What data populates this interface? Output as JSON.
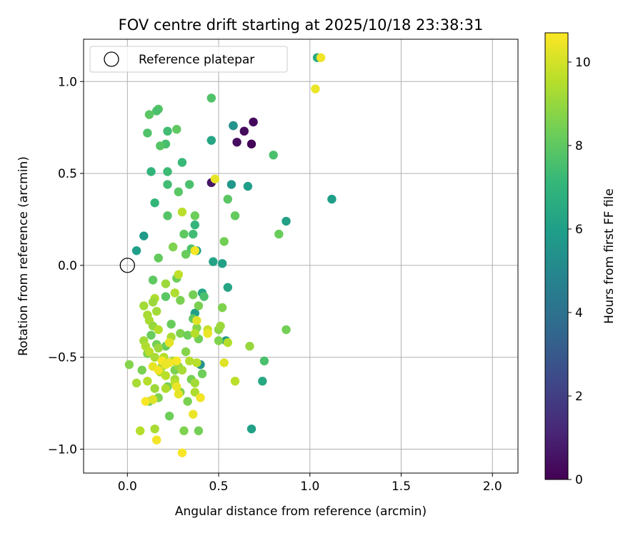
{
  "chart_data": {
    "type": "scatter",
    "title": "FOV centre drift starting at 2025/10/18 23:38:31",
    "xlabel": "Angular distance from reference (arcmin)",
    "ylabel": "Rotation from reference (arcmin)",
    "xlim": [
      -0.24,
      2.14
    ],
    "ylim": [
      -1.13,
      1.23
    ],
    "xticks": [
      0.0,
      0.5,
      1.0,
      1.5,
      2.0
    ],
    "xtick_labels": [
      "0.0",
      "0.5",
      "1.0",
      "1.5",
      "2.0"
    ],
    "yticks": [
      -1.0,
      -0.5,
      0.0,
      0.5,
      1.0
    ],
    "ytick_labels": [
      "−1.0",
      "−0.5",
      "0.0",
      "0.5",
      "1.0"
    ],
    "grid": true,
    "legend": {
      "label": "Reference platepar",
      "location": "top-left"
    },
    "reference_point": {
      "x": 0.0,
      "y": 0.0
    },
    "colorbar": {
      "label": "Hours from first FF file",
      "range": [
        0,
        10.7
      ],
      "ticks": [
        0,
        2,
        4,
        6,
        8,
        10
      ],
      "tick_labels": [
        "0",
        "2",
        "4",
        "6",
        "8",
        "10"
      ],
      "colormap": [
        "#440154",
        "#482878",
        "#3e4989",
        "#31688e",
        "#26828e",
        "#1f9e89",
        "#35b779",
        "#6ece58",
        "#b5de2b",
        "#fde725"
      ]
    },
    "points": [
      {
        "x": 0.58,
        "y": 0.76,
        "h": 0.5
      },
      {
        "x": 0.64,
        "y": 0.73,
        "h": 0.3
      },
      {
        "x": 0.69,
        "y": 0.78,
        "h": 0.2
      },
      {
        "x": 0.6,
        "y": 0.67,
        "h": 0.4
      },
      {
        "x": 0.68,
        "y": 0.66,
        "h": 0.1
      },
      {
        "x": 0.46,
        "y": 0.45,
        "h": 0.6
      },
      {
        "x": 0.58,
        "y": 0.76,
        "h": 5.5
      },
      {
        "x": 0.57,
        "y": 0.44,
        "h": 5.6
      },
      {
        "x": 0.66,
        "y": 0.43,
        "h": 6.0
      },
      {
        "x": 1.12,
        "y": 0.36,
        "h": 6.0
      },
      {
        "x": 0.87,
        "y": 0.24,
        "h": 6.1
      },
      {
        "x": 0.46,
        "y": 0.68,
        "h": 6.3
      },
      {
        "x": 0.09,
        "y": 0.16,
        "h": 5.8
      },
      {
        "x": 0.05,
        "y": 0.08,
        "h": 6.0
      },
      {
        "x": 0.47,
        "y": 0.02,
        "h": 6.2
      },
      {
        "x": 0.52,
        "y": 0.01,
        "h": 6.1
      },
      {
        "x": 0.55,
        "y": -0.12,
        "h": 6.3
      },
      {
        "x": 0.41,
        "y": -0.15,
        "h": 6.4
      },
      {
        "x": 0.37,
        "y": -0.26,
        "h": 6.0
      },
      {
        "x": 0.38,
        "y": 0.08,
        "h": 5.9
      },
      {
        "x": 0.54,
        "y": -0.41,
        "h": 5.7
      },
      {
        "x": 0.4,
        "y": -0.54,
        "h": 5.5
      },
      {
        "x": 0.68,
        "y": -0.89,
        "h": 6.1
      },
      {
        "x": 0.74,
        "y": -0.63,
        "h": 6.4
      },
      {
        "x": 1.04,
        "y": 1.13,
        "h": 6.5
      },
      {
        "x": 0.46,
        "y": 0.91,
        "h": 7.7
      },
      {
        "x": 0.17,
        "y": 0.85,
        "h": 7.8
      },
      {
        "x": 0.16,
        "y": 0.84,
        "h": 7.6
      },
      {
        "x": 0.12,
        "y": 0.82,
        "h": 7.9
      },
      {
        "x": 0.27,
        "y": 0.74,
        "h": 8.0
      },
      {
        "x": 0.22,
        "y": 0.73,
        "h": 7.4
      },
      {
        "x": 0.11,
        "y": 0.72,
        "h": 7.7
      },
      {
        "x": 0.21,
        "y": 0.66,
        "h": 7.5
      },
      {
        "x": 0.18,
        "y": 0.65,
        "h": 7.8
      },
      {
        "x": 0.8,
        "y": 0.6,
        "h": 7.6
      },
      {
        "x": 0.3,
        "y": 0.56,
        "h": 7.2
      },
      {
        "x": 0.22,
        "y": 0.51,
        "h": 7.3
      },
      {
        "x": 0.13,
        "y": 0.51,
        "h": 7.0
      },
      {
        "x": 0.22,
        "y": 0.44,
        "h": 7.4
      },
      {
        "x": 0.34,
        "y": 0.44,
        "h": 7.6
      },
      {
        "x": 0.28,
        "y": 0.4,
        "h": 7.9
      },
      {
        "x": 0.55,
        "y": 0.36,
        "h": 7.9
      },
      {
        "x": 0.15,
        "y": 0.34,
        "h": 7.1
      },
      {
        "x": 0.59,
        "y": 0.27,
        "h": 8.1
      },
      {
        "x": 0.37,
        "y": 0.27,
        "h": 8.3
      },
      {
        "x": 0.22,
        "y": 0.27,
        "h": 7.8
      },
      {
        "x": 0.37,
        "y": 0.22,
        "h": 7.0
      },
      {
        "x": 0.83,
        "y": 0.17,
        "h": 8.2
      },
      {
        "x": 0.31,
        "y": 0.17,
        "h": 8.0
      },
      {
        "x": 0.36,
        "y": 0.17,
        "h": 7.4
      },
      {
        "x": 0.53,
        "y": 0.13,
        "h": 8.4
      },
      {
        "x": 0.25,
        "y": 0.1,
        "h": 8.6
      },
      {
        "x": 0.35,
        "y": 0.09,
        "h": 7.7
      },
      {
        "x": 0.32,
        "y": 0.06,
        "h": 8.2
      },
      {
        "x": 0.17,
        "y": 0.04,
        "h": 8.1
      },
      {
        "x": 0.14,
        "y": -0.08,
        "h": 8.0
      },
      {
        "x": 0.27,
        "y": -0.07,
        "h": 8.3
      },
      {
        "x": 0.21,
        "y": -0.17,
        "h": 7.9
      },
      {
        "x": 0.36,
        "y": -0.16,
        "h": 8.4
      },
      {
        "x": 0.42,
        "y": -0.17,
        "h": 7.6
      },
      {
        "x": 0.29,
        "y": -0.19,
        "h": 8.5
      },
      {
        "x": 0.52,
        "y": -0.23,
        "h": 8.6
      },
      {
        "x": 0.39,
        "y": -0.22,
        "h": 8.5
      },
      {
        "x": 0.24,
        "y": -0.32,
        "h": 8.2
      },
      {
        "x": 0.36,
        "y": -0.29,
        "h": 8.0
      },
      {
        "x": 0.87,
        "y": -0.35,
        "h": 8.4
      },
      {
        "x": 0.38,
        "y": -0.34,
        "h": 8.7
      },
      {
        "x": 0.29,
        "y": -0.37,
        "h": 8.6
      },
      {
        "x": 0.33,
        "y": -0.38,
        "h": 8.3
      },
      {
        "x": 0.5,
        "y": -0.35,
        "h": 8.8
      },
      {
        "x": 0.39,
        "y": -0.4,
        "h": 8.4
      },
      {
        "x": 0.21,
        "y": -0.44,
        "h": 8.2
      },
      {
        "x": 0.5,
        "y": -0.41,
        "h": 8.6
      },
      {
        "x": 0.67,
        "y": -0.44,
        "h": 9.0
      },
      {
        "x": 0.75,
        "y": -0.52,
        "h": 7.6
      },
      {
        "x": 0.32,
        "y": -0.47,
        "h": 8.7
      },
      {
        "x": 0.41,
        "y": -0.59,
        "h": 8.3
      },
      {
        "x": 0.35,
        "y": -0.62,
        "h": 8.5
      },
      {
        "x": 0.22,
        "y": -0.66,
        "h": 8.4
      },
      {
        "x": 0.23,
        "y": -0.82,
        "h": 8.3
      },
      {
        "x": 0.31,
        "y": -0.9,
        "h": 8.6
      },
      {
        "x": 0.39,
        "y": -0.9,
        "h": 8.4
      },
      {
        "x": 0.01,
        "y": -0.54,
        "h": 8.7
      },
      {
        "x": 0.08,
        "y": -0.57,
        "h": 8.5
      },
      {
        "x": 0.13,
        "y": -0.38,
        "h": 8.2
      },
      {
        "x": 0.16,
        "y": -0.43,
        "h": 8.4
      },
      {
        "x": 0.11,
        "y": -0.48,
        "h": 8.6
      },
      {
        "x": 0.19,
        "y": -0.55,
        "h": 8.7
      },
      {
        "x": 0.26,
        "y": -0.57,
        "h": 8.5
      },
      {
        "x": 0.12,
        "y": -0.74,
        "h": 8.3
      },
      {
        "x": 0.17,
        "y": -0.72,
        "h": 8.6
      },
      {
        "x": 0.29,
        "y": -0.69,
        "h": 8.7
      },
      {
        "x": 0.33,
        "y": -0.74,
        "h": 8.5
      },
      {
        "x": 0.09,
        "y": -0.22,
        "h": 9.2
      },
      {
        "x": 0.11,
        "y": -0.27,
        "h": 9.3
      },
      {
        "x": 0.15,
        "y": -0.18,
        "h": 9.4
      },
      {
        "x": 0.14,
        "y": -0.2,
        "h": 9.1
      },
      {
        "x": 0.16,
        "y": -0.25,
        "h": 9.2
      },
      {
        "x": 0.12,
        "y": -0.3,
        "h": 9.3
      },
      {
        "x": 0.14,
        "y": -0.33,
        "h": 9.0
      },
      {
        "x": 0.17,
        "y": -0.35,
        "h": 9.5
      },
      {
        "x": 0.21,
        "y": -0.1,
        "h": 9.1
      },
      {
        "x": 0.3,
        "y": 0.29,
        "h": 9.6
      },
      {
        "x": 0.28,
        "y": -0.05,
        "h": 9.7
      },
      {
        "x": 0.26,
        "y": -0.15,
        "h": 9.4
      },
      {
        "x": 0.37,
        "y": -0.37,
        "h": 9.5
      },
      {
        "x": 0.44,
        "y": -0.37,
        "h": 9.6
      },
      {
        "x": 0.44,
        "y": -0.35,
        "h": 9.8
      },
      {
        "x": 0.51,
        "y": -0.33,
        "h": 9.1
      },
      {
        "x": 0.55,
        "y": -0.42,
        "h": 9.5
      },
      {
        "x": 0.24,
        "y": -0.39,
        "h": 9.3
      },
      {
        "x": 0.23,
        "y": -0.42,
        "h": 9.7
      },
      {
        "x": 0.09,
        "y": -0.41,
        "h": 9.2
      },
      {
        "x": 0.1,
        "y": -0.44,
        "h": 9.4
      },
      {
        "x": 0.12,
        "y": -0.47,
        "h": 9.6
      },
      {
        "x": 0.15,
        "y": -0.5,
        "h": 9.3
      },
      {
        "x": 0.17,
        "y": -0.45,
        "h": 9.1
      },
      {
        "x": 0.2,
        "y": -0.5,
        "h": 9.5
      },
      {
        "x": 0.25,
        "y": -0.52,
        "h": 9.2
      },
      {
        "x": 0.28,
        "y": -0.55,
        "h": 9.0
      },
      {
        "x": 0.18,
        "y": -0.58,
        "h": 9.4
      },
      {
        "x": 0.21,
        "y": -0.6,
        "h": 9.6
      },
      {
        "x": 0.26,
        "y": -0.62,
        "h": 9.2
      },
      {
        "x": 0.3,
        "y": -0.57,
        "h": 9.3
      },
      {
        "x": 0.34,
        "y": -0.52,
        "h": 9.5
      },
      {
        "x": 0.38,
        "y": -0.53,
        "h": 9.6
      },
      {
        "x": 0.05,
        "y": -0.64,
        "h": 9.3
      },
      {
        "x": 0.11,
        "y": -0.63,
        "h": 9.5
      },
      {
        "x": 0.15,
        "y": -0.67,
        "h": 9.1
      },
      {
        "x": 0.21,
        "y": -0.67,
        "h": 9.4
      },
      {
        "x": 0.26,
        "y": -0.64,
        "h": 9.6
      },
      {
        "x": 0.37,
        "y": -0.64,
        "h": 9.2
      },
      {
        "x": 0.37,
        "y": -0.69,
        "h": 9.4
      },
      {
        "x": 0.59,
        "y": -0.63,
        "h": 9.6
      },
      {
        "x": 0.07,
        "y": -0.9,
        "h": 9.5
      },
      {
        "x": 0.15,
        "y": -0.89,
        "h": 9.3
      },
      {
        "x": 1.06,
        "y": 1.13,
        "h": 10.5
      },
      {
        "x": 1.03,
        "y": 0.96,
        "h": 10.4
      },
      {
        "x": 0.48,
        "y": 0.47,
        "h": 10.3
      },
      {
        "x": 0.37,
        "y": 0.08,
        "h": 10.6
      },
      {
        "x": 0.38,
        "y": -0.3,
        "h": 10.2
      },
      {
        "x": 0.44,
        "y": -0.37,
        "h": 10.4
      },
      {
        "x": 0.23,
        "y": -0.42,
        "h": 10.3
      },
      {
        "x": 0.23,
        "y": -0.53,
        "h": 10.5
      },
      {
        "x": 0.19,
        "y": -0.52,
        "h": 10.6
      },
      {
        "x": 0.21,
        "y": -0.54,
        "h": 10.4
      },
      {
        "x": 0.14,
        "y": -0.55,
        "h": 10.3
      },
      {
        "x": 0.17,
        "y": -0.57,
        "h": 10.5
      },
      {
        "x": 0.53,
        "y": -0.53,
        "h": 10.2
      },
      {
        "x": 0.27,
        "y": -0.52,
        "h": 10.6
      },
      {
        "x": 0.27,
        "y": -0.66,
        "h": 10.4
      },
      {
        "x": 0.28,
        "y": -0.7,
        "h": 10.3
      },
      {
        "x": 0.4,
        "y": -0.72,
        "h": 10.5
      },
      {
        "x": 0.1,
        "y": -0.74,
        "h": 10.6
      },
      {
        "x": 0.14,
        "y": -0.73,
        "h": 10.2
      },
      {
        "x": 0.36,
        "y": -0.81,
        "h": 10.4
      },
      {
        "x": 0.16,
        "y": -0.95,
        "h": 10.5
      },
      {
        "x": 0.3,
        "y": -1.02,
        "h": 10.6
      }
    ]
  }
}
